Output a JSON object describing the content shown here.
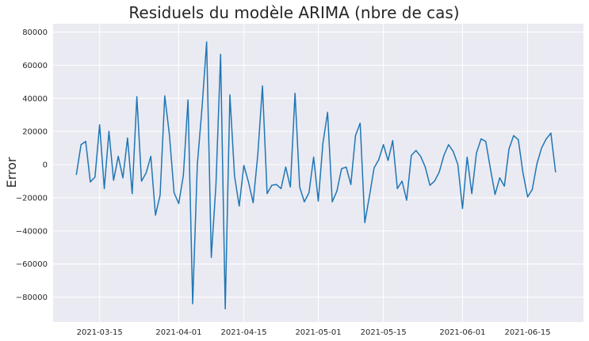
{
  "chart_data": {
    "type": "line",
    "title": "Residuels du modèle ARIMA (nbre de cas)",
    "xlabel": "",
    "ylabel": "Error",
    "xlim": [
      "2021-03-05",
      "2021-06-27"
    ],
    "ylim": [
      -95000,
      85000
    ],
    "x_ticks": [
      "2021-03-15",
      "2021-04-01",
      "2021-04-15",
      "2021-05-01",
      "2021-05-15",
      "2021-06-01",
      "2021-06-15"
    ],
    "y_ticks": [
      -80000,
      -60000,
      -40000,
      -20000,
      0,
      20000,
      40000,
      60000,
      80000
    ],
    "y_tick_labels": [
      "−80000",
      "−60000",
      "−40000",
      "−20000",
      "0",
      "20000",
      "40000",
      "60000",
      "80000"
    ],
    "grid": true,
    "line_color": "#1f77b4",
    "background_color": "#eaeaf2",
    "series": [
      {
        "x_start": "2021-03-10",
        "values": [
          -6000,
          12000,
          14000,
          -10500,
          -7500,
          24000,
          -14500,
          20000,
          -9500,
          5000,
          -8000,
          16000,
          -17500,
          41000,
          -10000,
          -5000,
          5000,
          -30500,
          -18500,
          41500,
          18000,
          -17000,
          -23500,
          -6500,
          39000,
          -84000,
          0,
          34000,
          74000,
          -56000,
          -12500,
          66500,
          -87000,
          42000,
          -7000,
          -25000,
          -500,
          -10500,
          -23000,
          6000,
          47500,
          -17500,
          -12500,
          -12000,
          -14500,
          -1500,
          -13500,
          43000,
          -13500,
          -22500,
          -17000,
          4500,
          -22000,
          13000,
          31500,
          -22500,
          -16000,
          -2500,
          -1500,
          -12000,
          17500,
          25000,
          -35000,
          -19000,
          -2000,
          3000,
          12000,
          2500,
          14500,
          -14500,
          -10000,
          -21500,
          5500,
          8500,
          5000,
          -1500,
          -12500,
          -10000,
          -4500,
          5500,
          12000,
          8000,
          0,
          -26500,
          4500,
          -17500,
          7000,
          15500,
          14000,
          -2500,
          -18000,
          -8000,
          -13000,
          9500,
          17500,
          15000,
          -5000,
          -19500,
          -15000,
          500,
          10000,
          15500,
          19000,
          -4500
        ]
      }
    ]
  }
}
